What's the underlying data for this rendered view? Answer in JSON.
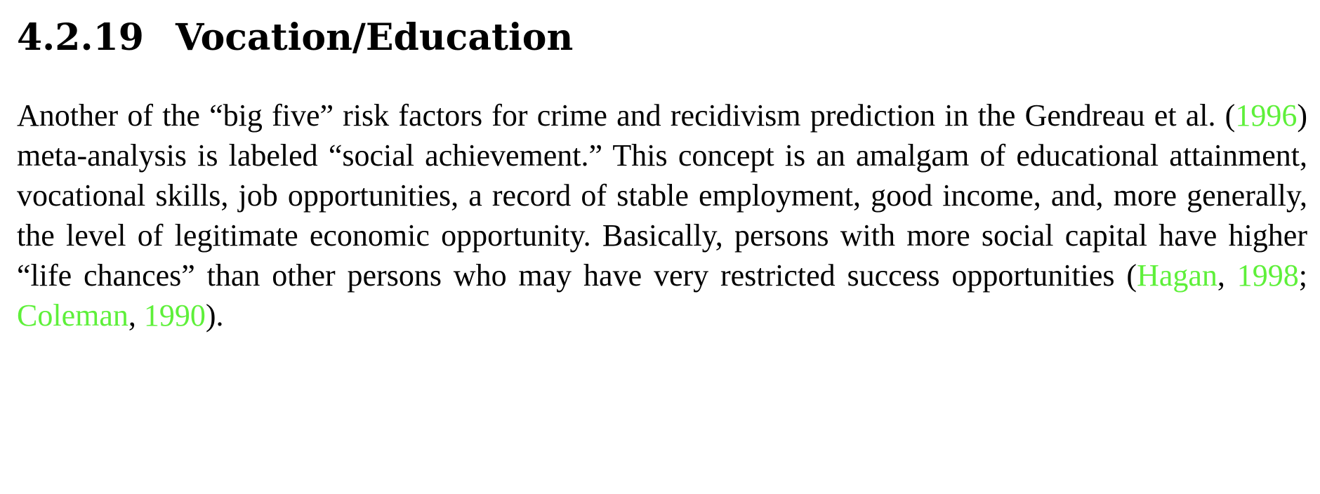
{
  "section": {
    "number": "4.2.19",
    "title": "Vocation/Education"
  },
  "paragraph": {
    "t1": "Another of the “big five” risk factors for crime and recidivism prediction in the Gendreau et al. (",
    "c1": "1996",
    "t2": ") meta-analysis is labeled “social achievement.”  This concept is an amalgam of educational attainment, vocational skills, job opportunities, a record of stable employment, good income, and, more generally, the level of legitimate economic opportunity.  Basically, persons with more social capital have higher “life chances” than other persons who may have very restricted success opportunities (",
    "c2": "Hagan",
    "t3": ", ",
    "c3": "1998",
    "t4": "; ",
    "c4": "Coleman",
    "t5": ", ",
    "c5": "1990",
    "t6": ")."
  },
  "colors": {
    "citation_link": "#5ef03a",
    "text": "#000000",
    "background": "#ffffff"
  }
}
